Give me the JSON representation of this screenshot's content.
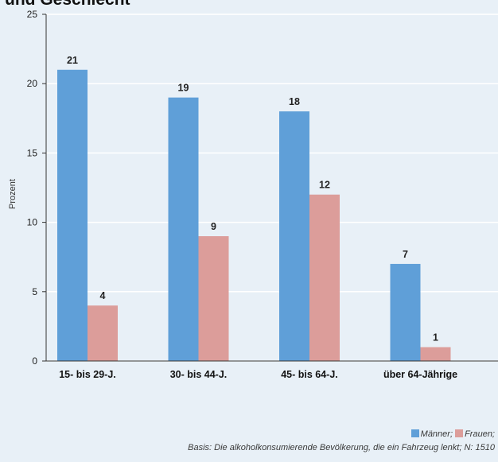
{
  "chart_data": {
    "type": "bar",
    "title": "und Geschlecht",
    "ylabel": "Prozent",
    "xlabel": "",
    "categories": [
      "15- bis 29-J.",
      "30- bis 44-J.",
      "45- bis 64-J.",
      "über 64-Jährige"
    ],
    "series": [
      {
        "name": "Männer",
        "values": [
          21,
          19,
          18,
          7
        ],
        "color": "#5f9fd8"
      },
      {
        "name": "Frauen",
        "values": [
          4,
          9,
          12,
          1
        ],
        "color": "#dc9d9a"
      }
    ],
    "ylim": [
      0,
      25
    ],
    "yticks": [
      0,
      5,
      10,
      15,
      20,
      25
    ],
    "grid": true,
    "legend_position": "bottom-right"
  },
  "legend": {
    "men": "Männer;",
    "women": "Frauen;"
  },
  "basis_note": "Basis: Die alkoholkonsumierende Bevölkerung, die ein Fahrzeug lenkt; N: 1510"
}
